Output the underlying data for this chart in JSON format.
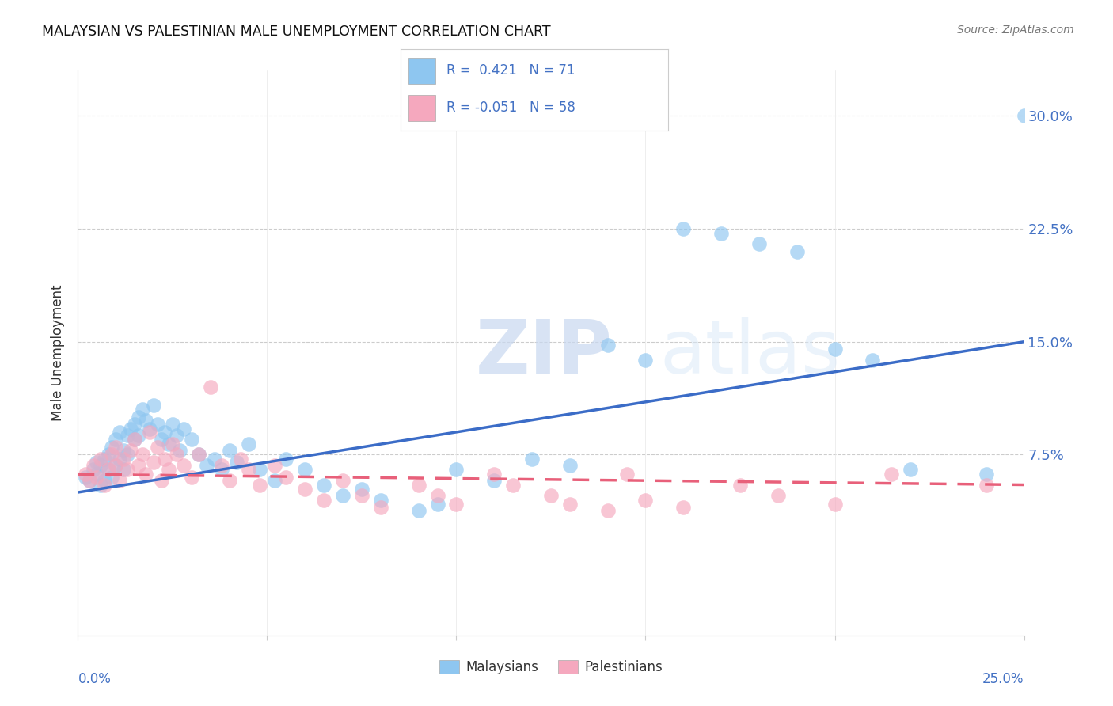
{
  "title": "MALAYSIAN VS PALESTINIAN MALE UNEMPLOYMENT CORRELATION CHART",
  "source": "Source: ZipAtlas.com",
  "ylabel": "Male Unemployment",
  "ytick_values": [
    0.0,
    0.075,
    0.15,
    0.225,
    0.3
  ],
  "ytick_labels": [
    "",
    "7.5%",
    "15.0%",
    "22.5%",
    "30.0%"
  ],
  "xlim": [
    0.0,
    0.25
  ],
  "ylim": [
    -0.045,
    0.33
  ],
  "legend_line1": "R =  0.421   N = 71",
  "legend_line2": "R = -0.051   N = 58",
  "malaysian_color": "#8EC6F0",
  "malaysian_edge_color": "#8EC6F0",
  "palestinian_color": "#F5A8BE",
  "palestinian_edge_color": "#F5A8BE",
  "malaysian_line_color": "#3B6CC7",
  "palestinian_line_color": "#E8607A",
  "right_axis_color": "#4472C4",
  "watermark_zip": "ZIP",
  "watermark_atlas": "atlas",
  "malaysian_x": [
    0.002,
    0.003,
    0.004,
    0.005,
    0.005,
    0.006,
    0.006,
    0.007,
    0.007,
    0.008,
    0.008,
    0.009,
    0.009,
    0.01,
    0.01,
    0.011,
    0.011,
    0.012,
    0.012,
    0.013,
    0.013,
    0.014,
    0.015,
    0.015,
    0.016,
    0.016,
    0.017,
    0.018,
    0.019,
    0.02,
    0.021,
    0.022,
    0.023,
    0.024,
    0.025,
    0.026,
    0.027,
    0.028,
    0.03,
    0.032,
    0.034,
    0.036,
    0.038,
    0.04,
    0.042,
    0.045,
    0.048,
    0.052,
    0.055,
    0.06,
    0.065,
    0.07,
    0.075,
    0.08,
    0.09,
    0.095,
    0.1,
    0.11,
    0.12,
    0.13,
    0.14,
    0.15,
    0.16,
    0.17,
    0.18,
    0.19,
    0.2,
    0.21,
    0.22,
    0.24,
    0.25
  ],
  "malaysian_y": [
    0.06,
    0.058,
    0.065,
    0.062,
    0.07,
    0.055,
    0.068,
    0.058,
    0.072,
    0.065,
    0.075,
    0.06,
    0.08,
    0.068,
    0.085,
    0.072,
    0.09,
    0.078,
    0.065,
    0.088,
    0.075,
    0.092,
    0.085,
    0.095,
    0.088,
    0.1,
    0.105,
    0.098,
    0.092,
    0.108,
    0.095,
    0.085,
    0.09,
    0.082,
    0.095,
    0.088,
    0.078,
    0.092,
    0.085,
    0.075,
    0.068,
    0.072,
    0.065,
    0.078,
    0.07,
    0.082,
    0.065,
    0.058,
    0.072,
    0.065,
    0.055,
    0.048,
    0.052,
    0.045,
    0.038,
    0.042,
    0.065,
    0.058,
    0.072,
    0.068,
    0.148,
    0.138,
    0.225,
    0.222,
    0.215,
    0.21,
    0.145,
    0.138,
    0.065,
    0.062,
    0.3
  ],
  "palestinian_x": [
    0.002,
    0.003,
    0.004,
    0.005,
    0.006,
    0.007,
    0.008,
    0.009,
    0.01,
    0.01,
    0.011,
    0.012,
    0.013,
    0.014,
    0.015,
    0.016,
    0.017,
    0.018,
    0.019,
    0.02,
    0.021,
    0.022,
    0.023,
    0.024,
    0.025,
    0.026,
    0.028,
    0.03,
    0.032,
    0.035,
    0.038,
    0.04,
    0.043,
    0.045,
    0.048,
    0.052,
    0.055,
    0.06,
    0.065,
    0.07,
    0.075,
    0.08,
    0.09,
    0.095,
    0.1,
    0.11,
    0.115,
    0.125,
    0.13,
    0.14,
    0.145,
    0.15,
    0.16,
    0.175,
    0.185,
    0.2,
    0.215,
    0.24
  ],
  "palestinian_y": [
    0.062,
    0.058,
    0.068,
    0.06,
    0.072,
    0.055,
    0.065,
    0.075,
    0.068,
    0.08,
    0.058,
    0.072,
    0.065,
    0.078,
    0.085,
    0.068,
    0.075,
    0.062,
    0.09,
    0.07,
    0.08,
    0.058,
    0.072,
    0.065,
    0.082,
    0.075,
    0.068,
    0.06,
    0.075,
    0.12,
    0.068,
    0.058,
    0.072,
    0.065,
    0.055,
    0.068,
    0.06,
    0.052,
    0.045,
    0.058,
    0.048,
    0.04,
    0.055,
    0.048,
    0.042,
    0.062,
    0.055,
    0.048,
    0.042,
    0.038,
    0.062,
    0.045,
    0.04,
    0.055,
    0.048,
    0.042,
    0.062,
    0.055
  ],
  "mal_line_x0": 0.0,
  "mal_line_x1": 0.25,
  "mal_line_y0": 0.05,
  "mal_line_y1": 0.15,
  "pal_line_x0": 0.0,
  "pal_line_x1": 0.25,
  "pal_line_y0": 0.062,
  "pal_line_y1": 0.055
}
